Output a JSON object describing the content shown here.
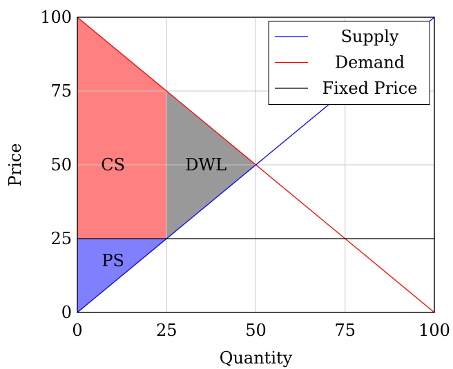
{
  "chart_data": {
    "type": "area",
    "xlabel": "Quantity",
    "ylabel": "Price",
    "xlim": [
      0,
      100
    ],
    "ylim": [
      0,
      100
    ],
    "x_ticks": [
      0,
      25,
      50,
      75,
      100
    ],
    "y_ticks": [
      0,
      25,
      50,
      75,
      100
    ],
    "grid": true,
    "legend_position": "top-right",
    "series": [
      {
        "name": "Supply",
        "color": "#0000ff",
        "points": [
          [
            0,
            0
          ],
          [
            100,
            100
          ]
        ]
      },
      {
        "name": "Demand",
        "color": "#ff0000",
        "points": [
          [
            0,
            100
          ],
          [
            100,
            0
          ]
        ]
      },
      {
        "name": "Fixed Price",
        "color": "#000000",
        "points": [
          [
            0,
            25
          ],
          [
            100,
            25
          ]
        ]
      }
    ],
    "regions": [
      {
        "label": "CS",
        "color": "#ff8080",
        "polygon": [
          [
            0,
            25
          ],
          [
            0,
            100
          ],
          [
            25,
            75
          ],
          [
            25,
            25
          ]
        ],
        "label_at": [
          10,
          50
        ]
      },
      {
        "label": "PS",
        "color": "#8080ff",
        "polygon": [
          [
            0,
            0
          ],
          [
            0,
            25
          ],
          [
            25,
            25
          ]
        ],
        "label_at": [
          10,
          17.5
        ]
      },
      {
        "label": "DWL",
        "color": "#999999",
        "polygon": [
          [
            25,
            25
          ],
          [
            25,
            75
          ],
          [
            50,
            50
          ]
        ],
        "label_at": [
          36,
          50
        ]
      }
    ]
  }
}
